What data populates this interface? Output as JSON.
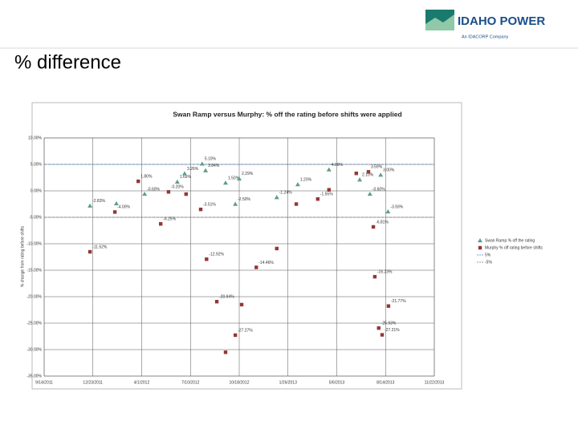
{
  "header": {
    "logo": "IDAHO POWER",
    "logo_tagline": "An IDACORP Company",
    "title": "% difference"
  },
  "chart_data": {
    "type": "scatter",
    "title": "Swan Ramp versus Murphy: % off the rating before shifts were applied",
    "y_label": "% change from rating before shifts",
    "xlim": [
      "2011-09-14",
      "2013-11-22"
    ],
    "xticks": [
      {
        "value": "2011-09-14",
        "label": "9/14/2011"
      },
      {
        "value": "2011-12-23",
        "label": "12/23/2011"
      },
      {
        "value": "2012-04-01",
        "label": "4/1/2012"
      },
      {
        "value": "2012-07-10",
        "label": "7/10/2012"
      },
      {
        "value": "2012-10-18",
        "label": "10/18/2012"
      },
      {
        "value": "2013-01-26",
        "label": "1/26/2013"
      },
      {
        "value": "2013-05-06",
        "label": "5/6/2013"
      },
      {
        "value": "2013-08-14",
        "label": "8/14/2013"
      },
      {
        "value": "2013-11-22",
        "label": "11/22/2013"
      }
    ],
    "ylim": [
      -35,
      10
    ],
    "yticks": [
      {
        "value": 10,
        "label": "10.00%"
      },
      {
        "value": 5,
        "label": "5.00%"
      },
      {
        "value": 0,
        "label": "0.00%"
      },
      {
        "value": -5,
        "label": "-5.00%"
      },
      {
        "value": -10,
        "label": "-10.00%"
      },
      {
        "value": -15,
        "label": "-15.00%"
      },
      {
        "value": -20,
        "label": "-20.00%"
      },
      {
        "value": -25,
        "label": "-25.00%"
      },
      {
        "value": -30,
        "label": "-30.00%"
      },
      {
        "value": -35,
        "label": "-35.00%"
      }
    ],
    "grid": true,
    "legend": "right",
    "series": [
      {
        "name": "Swan Ramp % off the rating",
        "color": "#5f9e8a",
        "marker": "triangle",
        "x": [
          "2011-12-17",
          "2012-02-09",
          "2012-04-07",
          "2012-06-13",
          "2012-06-28",
          "2012-08-03",
          "2012-08-10",
          "2012-09-20",
          "2012-10-18",
          "2012-10-10",
          "2013-01-03",
          "2013-02-15",
          "2013-04-20",
          "2013-06-22",
          "2013-07-13",
          "2013-08-04",
          "2013-08-19"
        ],
        "values": [
          -2.83,
          -2.4,
          -0.6,
          1.69,
          3.26,
          5.1,
          3.84,
          1.5,
          2.29,
          -2.5,
          -1.24,
          1.2,
          4.0,
          2.1,
          -0.6,
          3.0,
          -3.93
        ],
        "value_labels": [
          "-2.83%",
          null,
          "-0.60%",
          "1.69%",
          "3.26%",
          "5.10%",
          "3.84%",
          "1.50%",
          "2.29%",
          "-2.50%",
          "-1.24%",
          "1.20%",
          "4.00%",
          "2.10%",
          "-0.60%",
          "3.00%",
          "-3.93%"
        ]
      },
      {
        "name": "Murphy % off rating before shifts",
        "color": "#953735",
        "marker": "square",
        "x": [
          "2011-12-17",
          "2012-02-06",
          "2012-03-25",
          "2012-05-10",
          "2012-05-26",
          "2012-07-01",
          "2012-07-31",
          "2012-08-12",
          "2012-09-02",
          "2012-09-20",
          "2012-10-10",
          "2012-10-23",
          "2012-11-22",
          "2013-01-03",
          "2013-02-12",
          "2013-03-28",
          "2013-04-20",
          "2013-06-15",
          "2013-07-10",
          "2013-07-20",
          "2013-07-23",
          "2013-08-20",
          "2013-07-31",
          "2013-08-07"
        ],
        "values": [
          -11.52,
          -4.0,
          1.8,
          -6.25,
          -0.2,
          -0.62,
          -3.51,
          -12.92,
          -20.94,
          -30.5,
          -27.27,
          -21.5,
          -14.46,
          -10.9,
          -2.5,
          -1.55,
          0.2,
          3.3,
          3.59,
          -6.81,
          -16.23,
          -21.77,
          -25.93,
          -27.21
        ],
        "value_labels": [
          "-11.52%",
          "-4.00%",
          "1.80%",
          "-6.25%",
          "-0.20%",
          null,
          "-3.51%",
          "-12.92%",
          "-20.94%",
          null,
          "-27.27%",
          null,
          "-14.46%",
          null,
          null,
          "-1.55%",
          null,
          null,
          "3.59%",
          "-6.81%",
          "-16.23%",
          "-21.77%",
          "-25.93%",
          "-27.21%"
        ]
      }
    ],
    "reference_lines": [
      {
        "name": "5%",
        "value": 5,
        "color": "#4f81bd"
      },
      {
        "name": "-5%",
        "value": -5,
        "color": "#7f7f7f"
      }
    ]
  }
}
